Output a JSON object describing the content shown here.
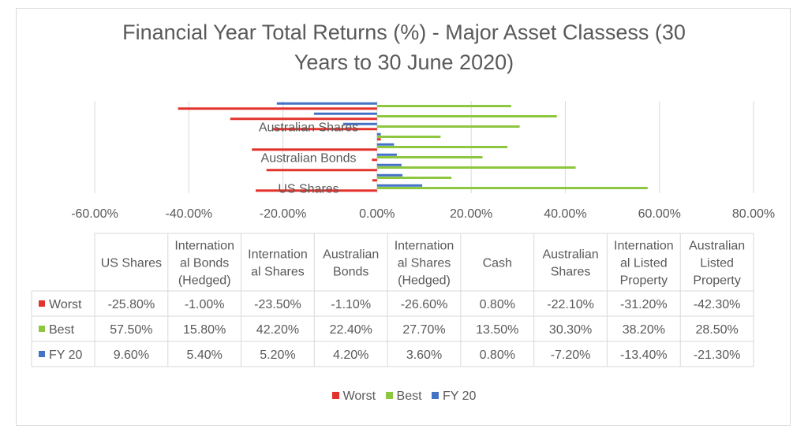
{
  "chart_data": {
    "type": "bar",
    "orientation": "horizontal",
    "title": "Financial Year Total Returns (%) - Major Asset Classess (30 Years to 30 June 2020)",
    "title_lines": [
      "Financial Year Total Returns (%) - Major Asset Classess (30",
      "Years to 30 June 2020)"
    ],
    "categories": [
      "US Shares",
      "International Bonds (Hedged)",
      "International Shares",
      "Australian Bonds",
      "International Shares (Hedged)",
      "Cash",
      "Australian Shares",
      "International Listed Property",
      "Australian Listed Property"
    ],
    "category_axis_labels": [
      "US Shares",
      "Australian Bonds",
      "Australian Shares"
    ],
    "table_headers": [
      [
        "US Shares"
      ],
      [
        "Internation",
        "al Bonds",
        "(Hedged)"
      ],
      [
        "Internation",
        "al Shares"
      ],
      [
        "Australian",
        "Bonds"
      ],
      [
        "Internation",
        "al Shares",
        "(Hedged)"
      ],
      [
        "Cash"
      ],
      [
        "Australian",
        "Shares"
      ],
      [
        "Internation",
        "al Listed",
        "Property"
      ],
      [
        "Australian",
        "Listed",
        "Property"
      ]
    ],
    "series": [
      {
        "name": "Worst",
        "color": "#e3322b",
        "values": [
          -25.8,
          -1.0,
          -23.5,
          -1.1,
          -26.6,
          0.8,
          -22.1,
          -31.2,
          -42.3
        ],
        "labels": [
          "-25.80%",
          "-1.00%",
          "-23.50%",
          "-1.10%",
          "-26.60%",
          "0.80%",
          "-22.10%",
          "-31.20%",
          "-42.30%"
        ]
      },
      {
        "name": "Best",
        "color": "#8dc73f",
        "values": [
          57.5,
          15.8,
          42.2,
          22.4,
          27.7,
          13.5,
          30.3,
          38.2,
          28.5
        ],
        "labels": [
          "57.50%",
          "15.80%",
          "42.20%",
          "22.40%",
          "27.70%",
          "13.50%",
          "30.30%",
          "38.20%",
          "28.50%"
        ]
      },
      {
        "name": "FY 20",
        "color": "#4472c4",
        "values": [
          9.6,
          5.4,
          5.2,
          4.2,
          3.6,
          0.8,
          -7.2,
          -13.4,
          -21.3
        ],
        "labels": [
          "9.60%",
          "5.40%",
          "5.20%",
          "4.20%",
          "3.60%",
          "0.80%",
          "-7.20%",
          "-13.40%",
          "-21.30%"
        ]
      }
    ],
    "x_ticks": [
      -60,
      -40,
      -20,
      0,
      20,
      40,
      60,
      80
    ],
    "x_tick_labels": [
      "-60.00%",
      "-40.00%",
      "-20.00%",
      "0.00%",
      "20.00%",
      "40.00%",
      "60.00%",
      "80.00%"
    ],
    "xlim": [
      -60,
      80
    ],
    "grid": true,
    "legend": "bottom",
    "data_table": true
  }
}
